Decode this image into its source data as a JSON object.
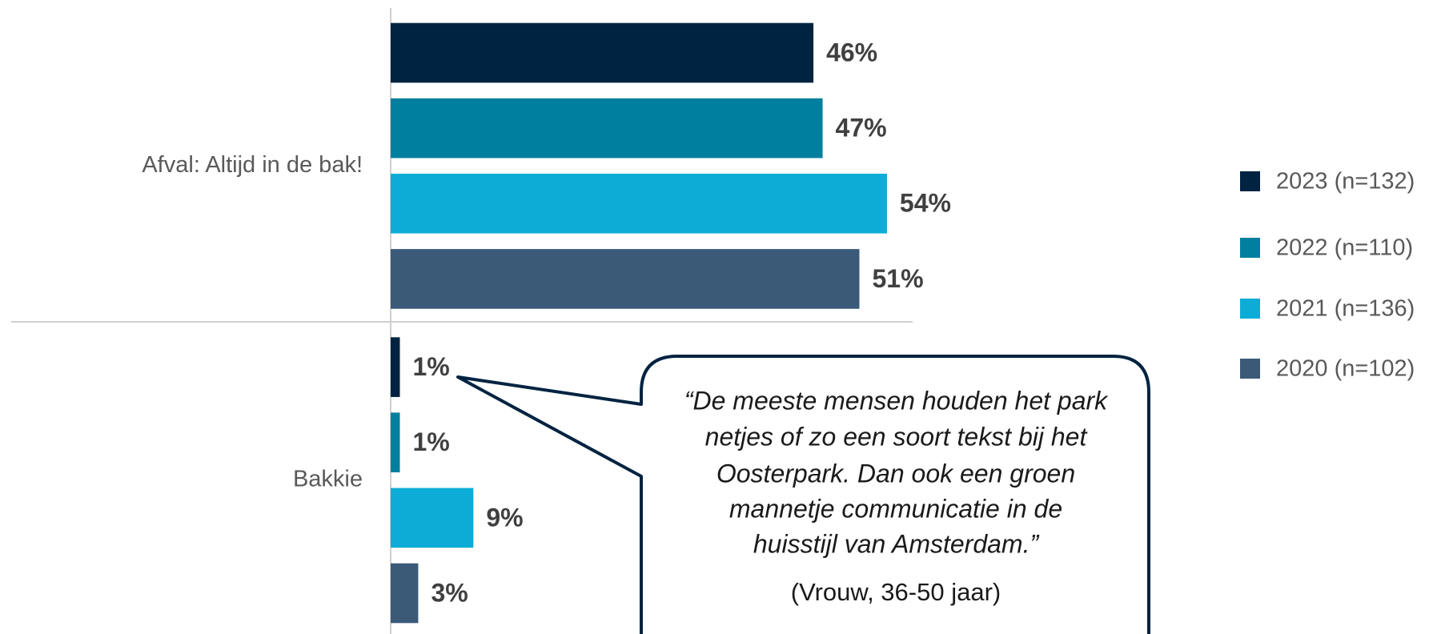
{
  "chart_data": {
    "type": "bar",
    "orientation": "horizontal",
    "categories": [
      "Afval: Altijd in de bak!",
      "Bakkie"
    ],
    "series": [
      {
        "name": "2023 (n=132)",
        "color": "#002341",
        "values": [
          46,
          1
        ],
        "value_labels": [
          "46%",
          "1%"
        ]
      },
      {
        "name": "2022 (n=110)",
        "color": "#007f9e",
        "values": [
          47,
          1
        ],
        "value_labels": [
          "47%",
          "1%"
        ]
      },
      {
        "name": "2021 (n=136)",
        "color": "#0cacd6",
        "values": [
          54,
          9
        ],
        "value_labels": [
          "54%",
          "9%"
        ]
      },
      {
        "name": "2020 (n=102)",
        "color": "#3a5a78",
        "values": [
          51,
          3
        ],
        "value_labels": [
          "51%",
          "3%"
        ]
      }
    ],
    "legend": "right",
    "annotation": {
      "quote_lines": [
        "“De meeste mensen houden het park",
        "netjes of zo een soort tekst bij het",
        "Oosterpark. Dan ook een groen",
        "mannetje communicatie in de",
        "huisstijl van Amsterdam.”"
      ],
      "attribution": "(Vrouw, 36-50 jaar)"
    }
  }
}
